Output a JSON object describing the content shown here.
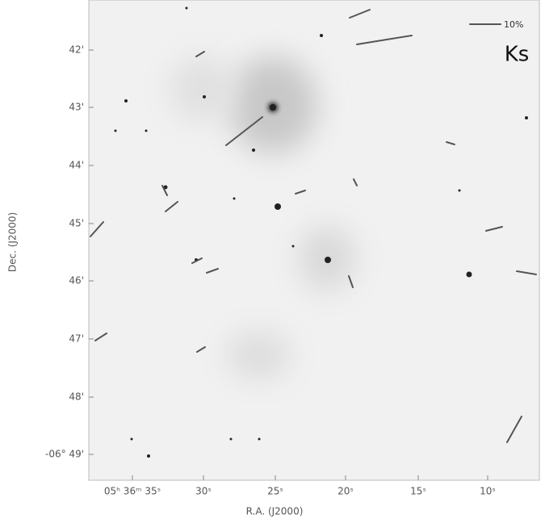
{
  "image": {
    "band": "Ks",
    "scale_label": "10%"
  },
  "axes": {
    "x_label": "R.A. (J2000)",
    "y_label": "Dec. (J2000)",
    "x_ticks": [
      "05ʰ 36ᵐ 35ˢ",
      "30ˢ",
      "25ˢ",
      "20ˢ",
      "15ˢ",
      "10ˢ"
    ],
    "y_ticks": [
      "42'",
      "43'",
      "44'",
      "45'",
      "46'",
      "47'",
      "48'",
      "-06° 49'"
    ]
  }
}
